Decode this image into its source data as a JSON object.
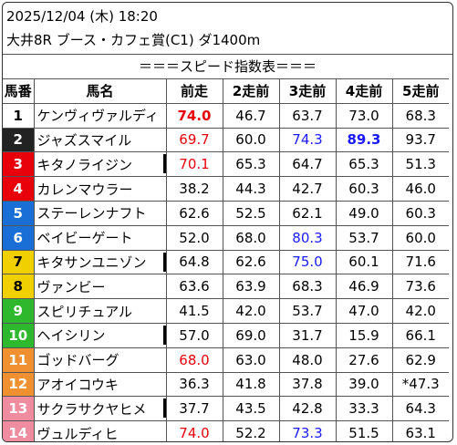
{
  "header": {
    "datetime": "2025/12/04 (木) 18:20",
    "race": "大井8R ブース・カフェ賞(C1) ダ1400m",
    "subtitle": "＝＝＝スピード指数表＝＝＝"
  },
  "columns": [
    "馬番",
    "馬名",
    "前走",
    "2走前",
    "3走前",
    "4走前",
    "5走前"
  ],
  "colors": {
    "frame1": "#ffffff",
    "frame2": "#222222",
    "frame3": "#e8000b",
    "frame4": "#e8000b",
    "frame5": "#1a6fd6",
    "frame6": "#1a6fd6",
    "frame7": "#f0d000",
    "frame8": "#f0d000",
    "frame9": "#2eb82e",
    "frame10": "#2eb82e",
    "frame11": "#f09030",
    "frame12": "#f09030",
    "frame13": "#f08ca0",
    "frame14": "#f08ca0",
    "red_value": "#e8000b",
    "blue_value": "#1a1aff"
  },
  "rows": [
    {
      "num": "1",
      "name": "ケンヴィヴァルディ",
      "bar": false,
      "v": [
        "74.0",
        "46.7",
        "63.7",
        "73.0",
        "68.3"
      ],
      "style": [
        "redbold",
        "",
        "",
        "",
        ""
      ]
    },
    {
      "num": "2",
      "name": "ジャズスマイル",
      "bar": false,
      "v": [
        "69.7",
        "60.0",
        "74.3",
        "89.3",
        "93.7"
      ],
      "style": [
        "red",
        "",
        "blue",
        "bluebold",
        ""
      ]
    },
    {
      "num": "3",
      "name": "キタノライジン",
      "bar": true,
      "v": [
        "70.1",
        "65.3",
        "64.7",
        "65.3",
        "51.3"
      ],
      "style": [
        "red",
        "",
        "",
        "",
        ""
      ]
    },
    {
      "num": "4",
      "name": "カレンマウラー",
      "bar": false,
      "v": [
        "38.2",
        "44.3",
        "42.7",
        "60.3",
        "46.0"
      ],
      "style": [
        "",
        "",
        "",
        "",
        ""
      ]
    },
    {
      "num": "5",
      "name": "ステーレンナフト",
      "bar": false,
      "v": [
        "62.6",
        "52.5",
        "62.1",
        "49.0",
        "60.3"
      ],
      "style": [
        "",
        "",
        "",
        "",
        ""
      ]
    },
    {
      "num": "6",
      "name": "ベイビーゲート",
      "bar": false,
      "v": [
        "52.0",
        "68.0",
        "80.3",
        "53.7",
        "60.0"
      ],
      "style": [
        "",
        "",
        "blue",
        "",
        ""
      ]
    },
    {
      "num": "7",
      "name": "キタサンユニゾン",
      "bar": true,
      "v": [
        "64.8",
        "62.6",
        "75.0",
        "60.1",
        "71.6"
      ],
      "style": [
        "",
        "",
        "blue",
        "",
        ""
      ]
    },
    {
      "num": "8",
      "name": "ヴァンビー",
      "bar": false,
      "v": [
        "63.6",
        "63.9",
        "68.3",
        "46.9",
        "73.6"
      ],
      "style": [
        "",
        "",
        "",
        "",
        ""
      ]
    },
    {
      "num": "9",
      "name": "スピリチュアル",
      "bar": false,
      "v": [
        "41.5",
        "42.0",
        "53.7",
        "47.0",
        "42.0"
      ],
      "style": [
        "",
        "",
        "",
        "",
        ""
      ]
    },
    {
      "num": "10",
      "name": "ヘイシリン",
      "bar": true,
      "v": [
        "57.0",
        "69.0",
        "31.7",
        "15.9",
        "66.1"
      ],
      "style": [
        "",
        "",
        "",
        "",
        ""
      ]
    },
    {
      "num": "11",
      "name": "ゴッドバーグ",
      "bar": false,
      "v": [
        "68.0",
        "63.0",
        "48.0",
        "27.6",
        "62.9"
      ],
      "style": [
        "red",
        "",
        "",
        "",
        ""
      ]
    },
    {
      "num": "12",
      "name": "アオイコウキ",
      "bar": false,
      "v": [
        "36.3",
        "41.8",
        "37.8",
        "39.0",
        "*47.3"
      ],
      "style": [
        "",
        "",
        "",
        "",
        ""
      ]
    },
    {
      "num": "13",
      "name": "サクラサクヤヒメ",
      "bar": true,
      "v": [
        "37.7",
        "43.5",
        "42.8",
        "33.3",
        "64.3"
      ],
      "style": [
        "",
        "",
        "",
        "",
        ""
      ]
    },
    {
      "num": "14",
      "name": "ヴュルディヒ",
      "bar": false,
      "v": [
        "74.0",
        "52.2",
        "73.3",
        "51.5",
        "63.1"
      ],
      "style": [
        "red",
        "",
        "blue",
        "",
        ""
      ]
    }
  ]
}
